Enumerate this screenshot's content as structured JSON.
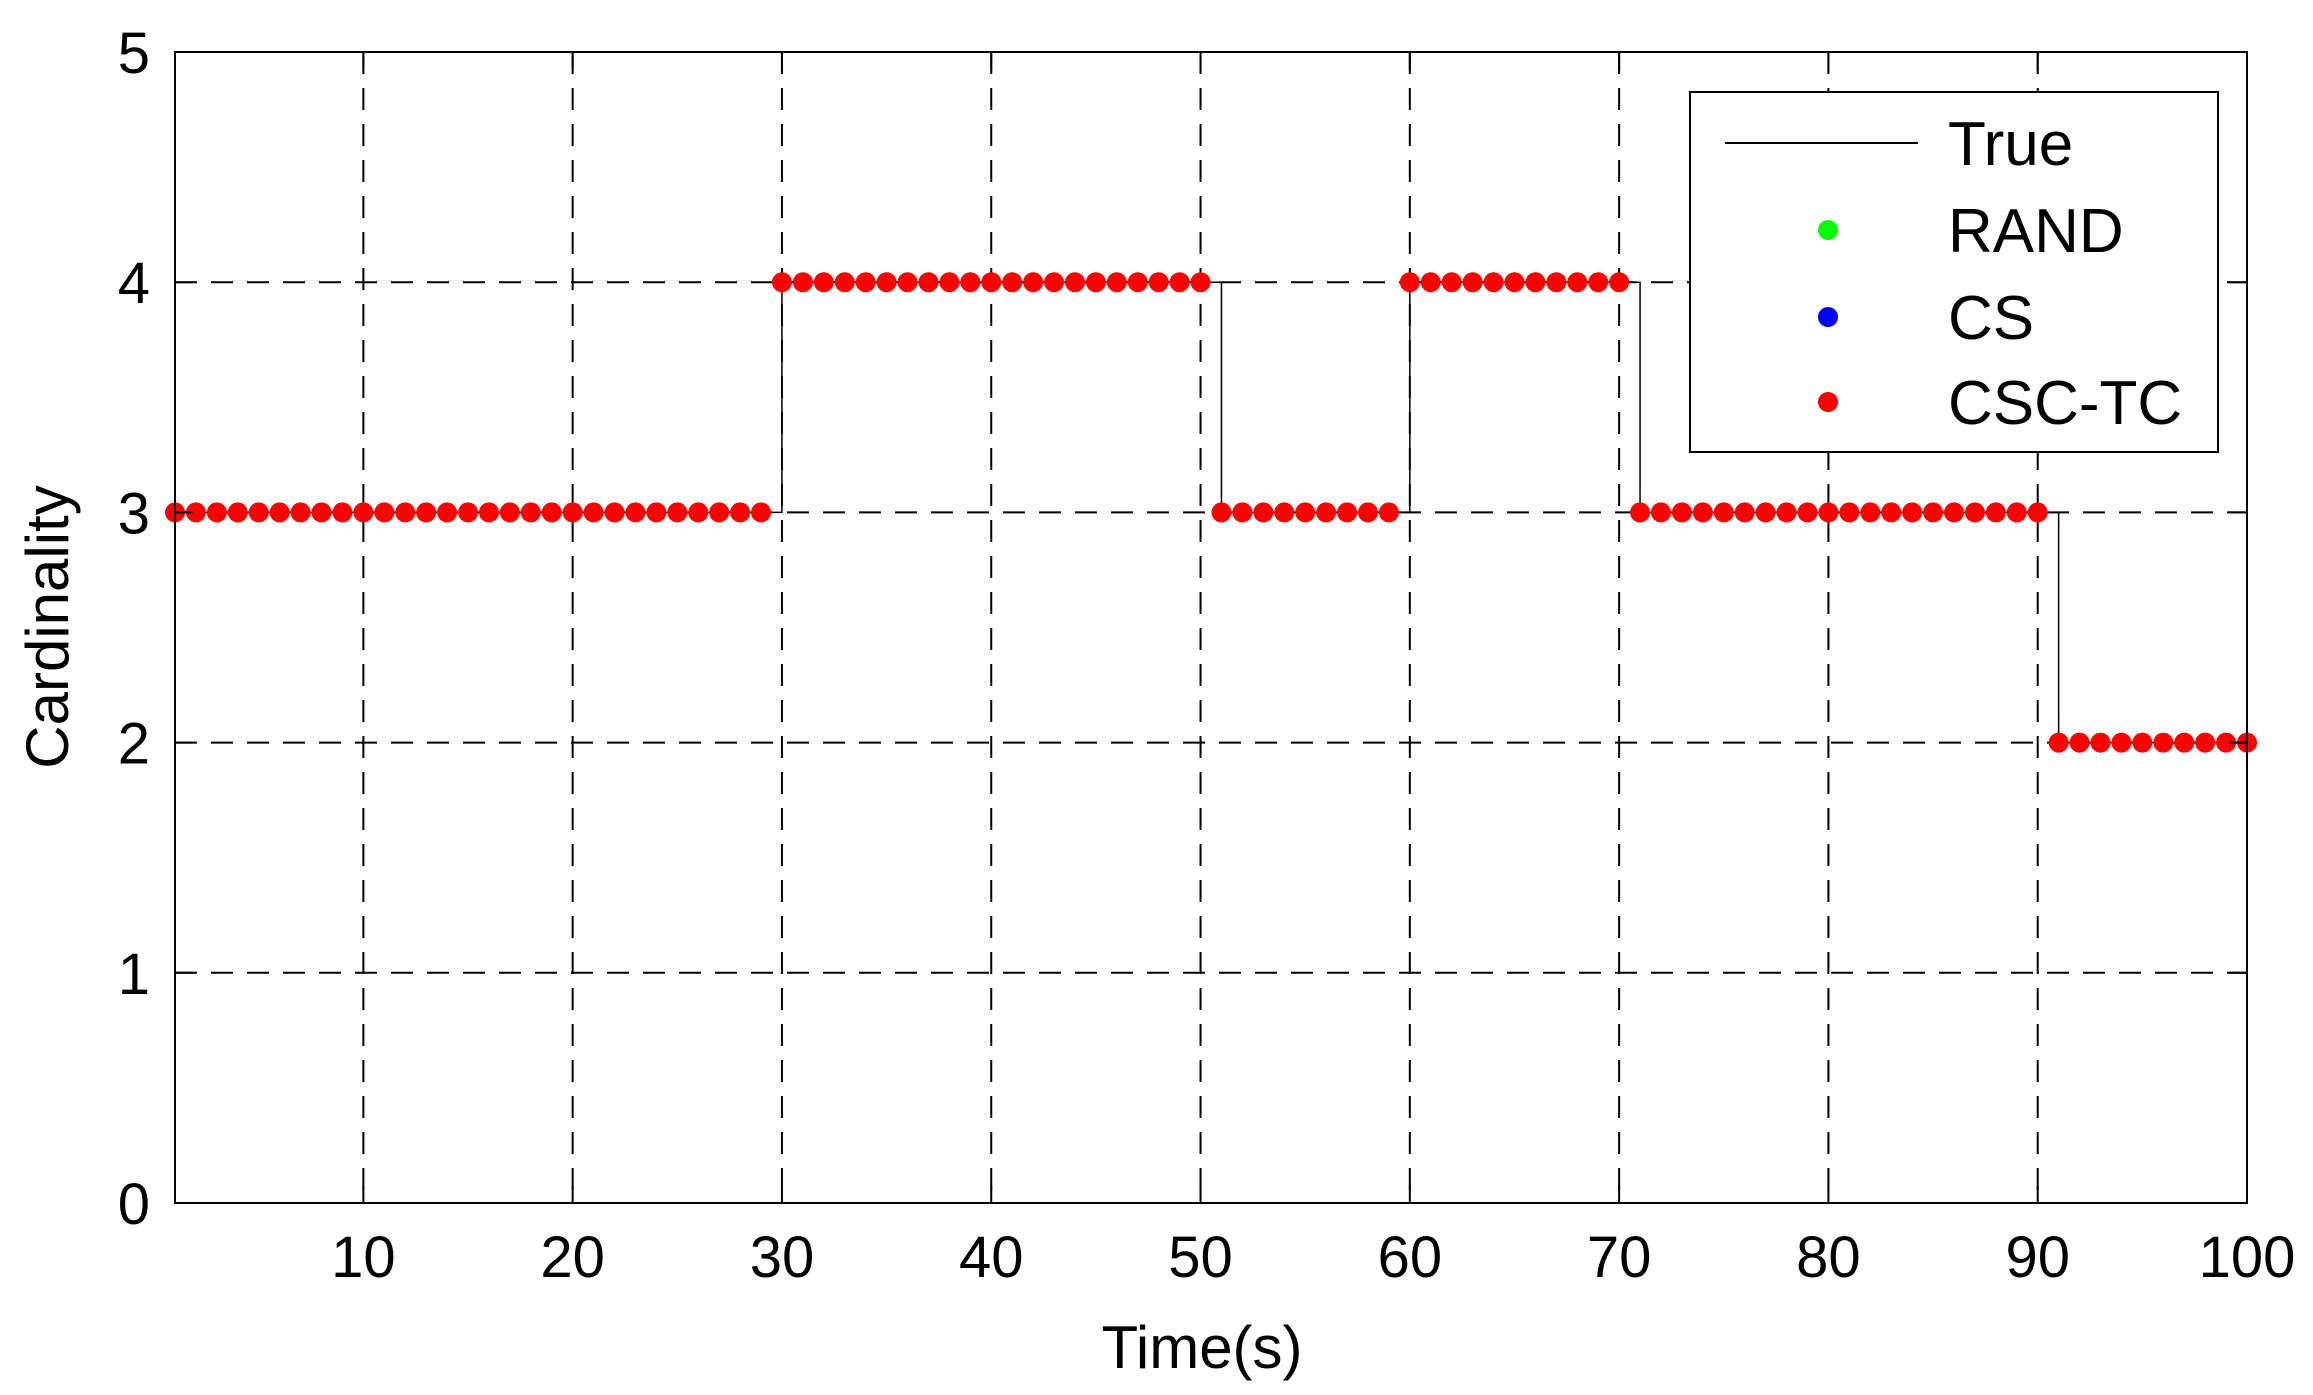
{
  "chart_data": {
    "type": "line",
    "xlabel": "Time(s)",
    "ylabel": "Cardinality",
    "xlim": [
      1,
      100
    ],
    "ylim": [
      0,
      5
    ],
    "xticks": [
      10,
      20,
      30,
      40,
      50,
      60,
      70,
      80,
      90,
      100
    ],
    "yticks": [
      0,
      1,
      2,
      3,
      4,
      5
    ],
    "grid": true,
    "legend_position": "top-right",
    "true_segments": [
      {
        "from": 1,
        "to": 30,
        "value": 3
      },
      {
        "from": 30,
        "to": 51,
        "value": 4
      },
      {
        "from": 51,
        "to": 60,
        "value": 3
      },
      {
        "from": 60,
        "to": 71,
        "value": 4
      },
      {
        "from": 71,
        "to": 91,
        "value": 3
      },
      {
        "from": 91,
        "to": 100,
        "value": 2
      }
    ],
    "series": [
      {
        "name": "True",
        "style": "line",
        "color": "#000000"
      },
      {
        "name": "RAND",
        "style": "marker",
        "color": "#00ff00"
      },
      {
        "name": "CS",
        "style": "marker",
        "color": "#0000ff"
      },
      {
        "name": "CSC-TC",
        "style": "marker",
        "color": "#ff0000",
        "segments": [
          {
            "from": 1,
            "to": 29,
            "value": 3
          },
          {
            "from": 30,
            "to": 50,
            "value": 4
          },
          {
            "from": 51,
            "to": 59,
            "value": 3
          },
          {
            "from": 60,
            "to": 70,
            "value": 4
          },
          {
            "from": 71,
            "to": 90,
            "value": 3
          },
          {
            "from": 91,
            "to": 100,
            "value": 2
          }
        ]
      }
    ]
  }
}
